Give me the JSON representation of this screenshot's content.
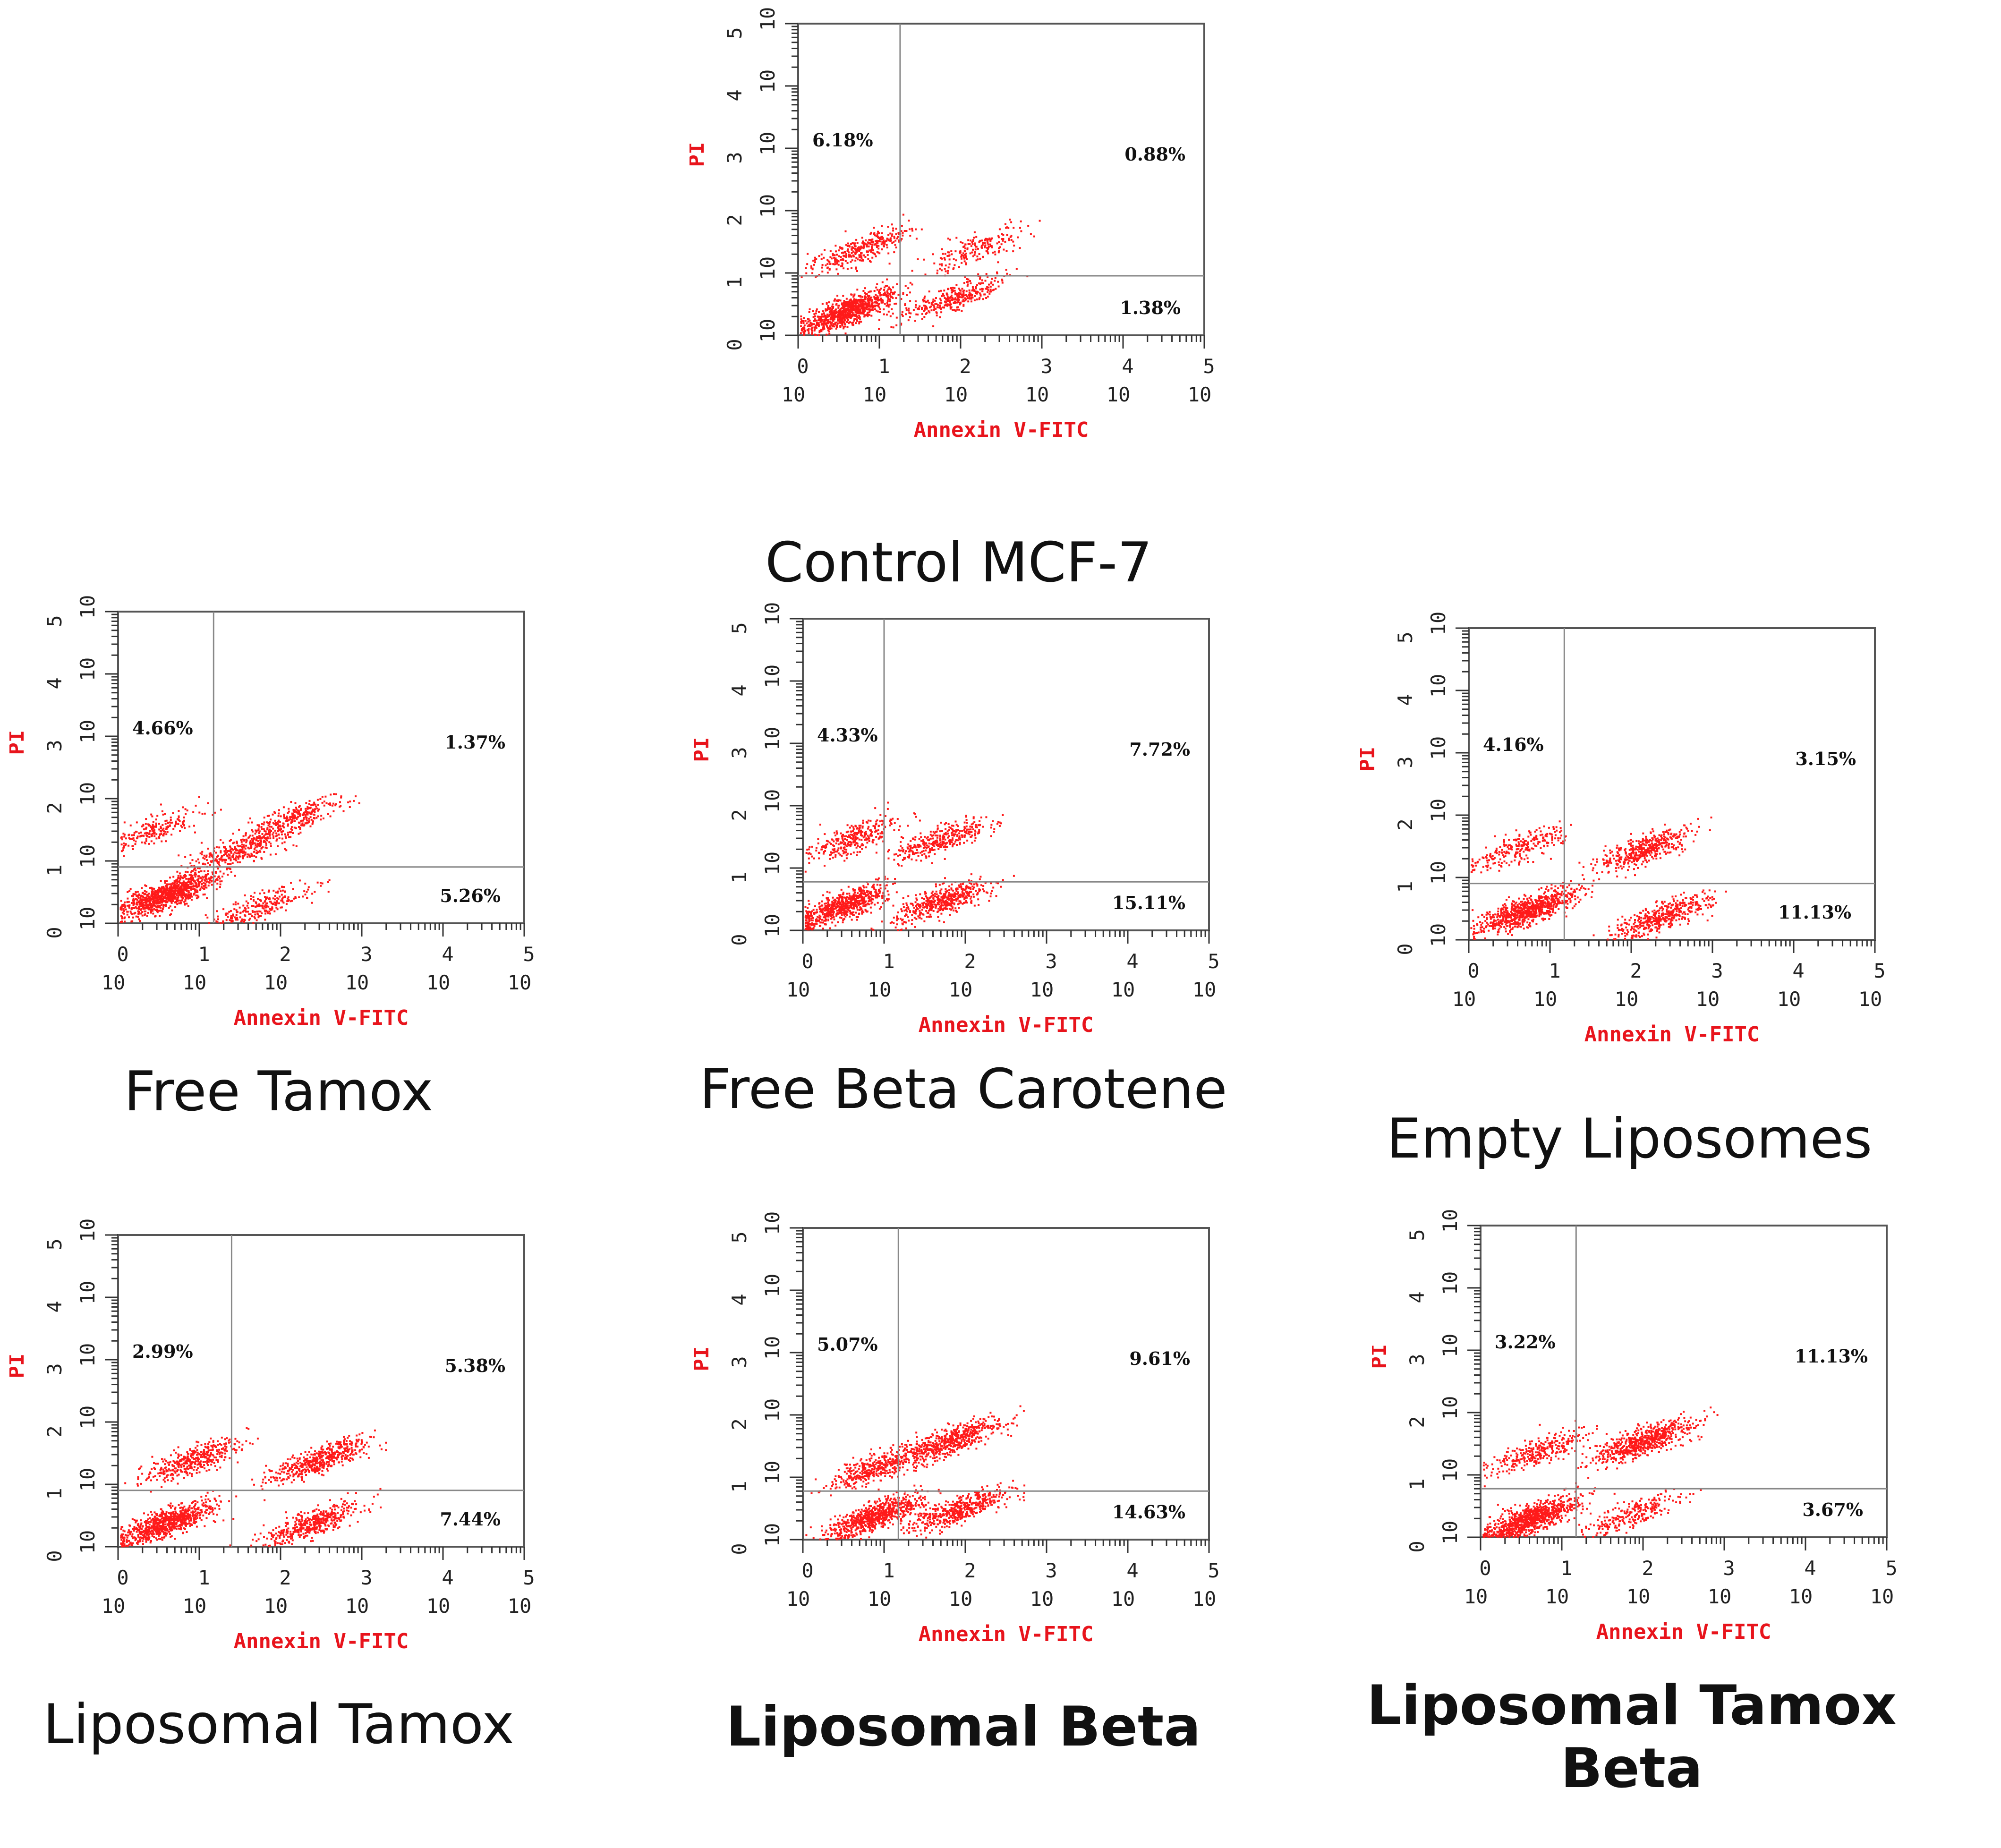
{
  "colors": {
    "dots": "#ff1a1a",
    "axis_label": "#e8141c",
    "frame": "#555555",
    "gate": "#888888"
  },
  "chart_data": [
    {
      "type": "scatter",
      "caption": "Control MCF-7",
      "xlabel": "Annexin V-FITC",
      "ylabel": "PI",
      "xscale": "log",
      "yscale": "log",
      "xlim": [
        1,
        100000
      ],
      "ylim": [
        1,
        100000
      ],
      "x_tick_labels": [
        "10^0",
        "10^1",
        "10^2",
        "10^3",
        "10^4",
        "10^5"
      ],
      "y_tick_labels": [
        "10^0",
        "10^1",
        "10^2",
        "10^3",
        "10^4",
        "10^5"
      ],
      "gate": [
        18,
        9
      ],
      "quadrants": {
        "upper_left": "6.18%",
        "upper_right": "0.88%",
        "lower_right": "1.38%"
      },
      "clusters": [
        {
          "x": 4,
          "y": 2.5,
          "n": 900
        },
        {
          "x": 6,
          "y": 25,
          "n": 350
        },
        {
          "x": 80,
          "y": 4,
          "n": 350
        },
        {
          "x": 150,
          "y": 25,
          "n": 200
        }
      ]
    },
    {
      "type": "scatter",
      "caption": "Free Tamox",
      "xlabel": "Annexin V-FITC",
      "ylabel": "PI",
      "xscale": "log",
      "yscale": "log",
      "xlim": [
        1,
        100000
      ],
      "ylim": [
        1,
        100000
      ],
      "x_tick_labels": [
        "10^0",
        "10^1",
        "10^2",
        "10^3",
        "10^4",
        "10^5"
      ],
      "y_tick_labels": [
        "10^0",
        "10^1",
        "10^2",
        "10^3",
        "10^4",
        "10^5"
      ],
      "gate": [
        15,
        8
      ],
      "quadrants": {
        "upper_left": "4.66%",
        "upper_right": "1.37%",
        "lower_right": "5.26%"
      },
      "clusters": [
        {
          "x": 4,
          "y": 3,
          "n": 1000
        },
        {
          "x": 3,
          "y": 35,
          "n": 200
        },
        {
          "x": 30,
          "y": 15,
          "n": 350
        },
        {
          "x": 150,
          "y": 50,
          "n": 300
        },
        {
          "x": 60,
          "y": 2,
          "n": 250
        }
      ]
    },
    {
      "type": "scatter",
      "caption": "Free Beta Carotene",
      "xlabel": "Annexin V-FITC",
      "ylabel": "PI",
      "xscale": "log",
      "yscale": "log",
      "xlim": [
        1,
        100000
      ],
      "ylim": [
        1,
        100000
      ],
      "x_tick_labels": [
        "10^0",
        "10^1",
        "10^2",
        "10^3",
        "10^4",
        "10^5"
      ],
      "y_tick_labels": [
        "10^0",
        "10^1",
        "10^2",
        "10^3",
        "10^4",
        "10^5"
      ],
      "gate": [
        10,
        6
      ],
      "quadrants": {
        "upper_left": "4.33%",
        "upper_right": "7.72%",
        "lower_right": "15.11%"
      },
      "clusters": [
        {
          "x": 3,
          "y": 2.5,
          "n": 700
        },
        {
          "x": 4,
          "y": 30,
          "n": 300
        },
        {
          "x": 50,
          "y": 30,
          "n": 350
        },
        {
          "x": 50,
          "y": 3,
          "n": 500
        }
      ]
    },
    {
      "type": "scatter",
      "caption": "Empty Liposomes",
      "xlabel": "Annexin V-FITC",
      "ylabel": "PI",
      "xscale": "log",
      "yscale": "log",
      "xlim": [
        1,
        100000
      ],
      "ylim": [
        1,
        100000
      ],
      "x_tick_labels": [
        "10^0",
        "10^1",
        "10^2",
        "10^3",
        "10^4",
        "10^5"
      ],
      "y_tick_labels": [
        "10^0",
        "10^1",
        "10^2",
        "10^3",
        "10^4",
        "10^5"
      ],
      "gate": [
        15,
        8
      ],
      "quadrants": {
        "upper_left": "4.16%",
        "upper_right": "3.15%",
        "lower_right": "11.13%"
      },
      "clusters": [
        {
          "x": 5,
          "y": 3,
          "n": 800
        },
        {
          "x": 4,
          "y": 30,
          "n": 250
        },
        {
          "x": 150,
          "y": 30,
          "n": 450
        },
        {
          "x": 250,
          "y": 2.5,
          "n": 450
        }
      ]
    },
    {
      "type": "scatter",
      "caption": "Liposomal Tamox",
      "xlabel": "Annexin V-FITC",
      "ylabel": "PI",
      "xscale": "log",
      "yscale": "log",
      "xlim": [
        1,
        100000
      ],
      "ylim": [
        1,
        100000
      ],
      "x_tick_labels": [
        "10^0",
        "10^1",
        "10^2",
        "10^3",
        "10^4",
        "10^5"
      ],
      "y_tick_labels": [
        "10^0",
        "10^1",
        "10^2",
        "10^3",
        "10^4",
        "10^5"
      ],
      "gate": [
        25,
        8
      ],
      "quadrants": {
        "upper_left": "2.99%",
        "upper_right": "5.38%",
        "lower_right": "7.44%"
      },
      "clusters": [
        {
          "x": 4,
          "y": 2.5,
          "n": 800
        },
        {
          "x": 8,
          "y": 25,
          "n": 400
        },
        {
          "x": 300,
          "y": 25,
          "n": 500
        },
        {
          "x": 250,
          "y": 2.5,
          "n": 450
        }
      ]
    },
    {
      "type": "scatter",
      "caption": "Liposomal Beta",
      "xlabel": "Annexin V-FITC",
      "ylabel": "PI",
      "xscale": "log",
      "yscale": "log",
      "xlim": [
        1,
        100000
      ],
      "ylim": [
        1,
        100000
      ],
      "x_tick_labels": [
        "10^0",
        "10^1",
        "10^2",
        "10^3",
        "10^4",
        "10^5"
      ],
      "y_tick_labels": [
        "10^0",
        "10^1",
        "10^2",
        "10^3",
        "10^4",
        "10^5"
      ],
      "gate": [
        15,
        6
      ],
      "quadrants": {
        "upper_left": "5.07%",
        "upper_right": "9.61%",
        "lower_right": "14.63%"
      },
      "clusters": [
        {
          "x": 8,
          "y": 2.5,
          "n": 700
        },
        {
          "x": 8,
          "y": 15,
          "n": 400
        },
        {
          "x": 70,
          "y": 40,
          "n": 550
        },
        {
          "x": 80,
          "y": 3,
          "n": 500
        }
      ]
    },
    {
      "type": "scatter",
      "caption": "Liposomal Tamox Beta",
      "xlabel": "Annexin V-FITC",
      "ylabel": "PI",
      "xscale": "log",
      "yscale": "log",
      "xlim": [
        1,
        100000
      ],
      "ylim": [
        1,
        100000
      ],
      "x_tick_labels": [
        "10^0",
        "10^1",
        "10^2",
        "10^3",
        "10^4",
        "10^5"
      ],
      "y_tick_labels": [
        "10^0",
        "10^1",
        "10^2",
        "10^3",
        "10^4",
        "10^5"
      ],
      "gate": [
        15,
        6
      ],
      "quadrants": {
        "upper_left": "3.22%",
        "upper_right": "11.13%",
        "lower_right": "3.67%"
      },
      "clusters": [
        {
          "x": 4,
          "y": 2,
          "n": 900
        },
        {
          "x": 5,
          "y": 25,
          "n": 300
        },
        {
          "x": 100,
          "y": 35,
          "n": 650
        },
        {
          "x": 80,
          "y": 2.5,
          "n": 250
        }
      ]
    }
  ]
}
